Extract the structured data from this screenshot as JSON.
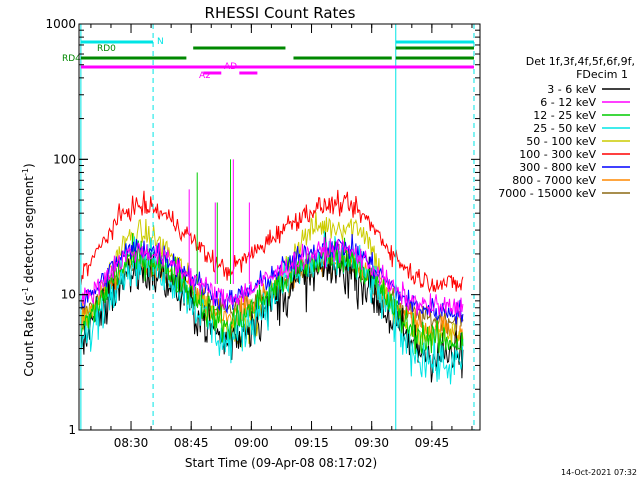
{
  "chart_data": {
    "type": "line",
    "title": "RHESSI Count Rates",
    "xlabel": "Start Time (09-Apr-08 08:17:02)",
    "ylabel_main": "Count Rate (s",
    "ylabel_sup1": "-1",
    "ylabel_mid": " detector segment",
    "ylabel_sup2": "-1",
    "ylabel_end": ")",
    "yscale": "log",
    "ylim": [
      1,
      1000
    ],
    "xlim_minutes": [
      497.03,
      597.0
    ],
    "x_ticks": [
      {
        "m": 510,
        "label": "08:30"
      },
      {
        "m": 525,
        "label": "08:45"
      },
      {
        "m": 540,
        "label": "09:00"
      },
      {
        "m": 555,
        "label": "09:15"
      },
      {
        "m": 570,
        "label": "09:30"
      },
      {
        "m": 585,
        "label": "09:45"
      }
    ],
    "y_ticks": [
      {
        "v": 1,
        "label": "1"
      },
      {
        "v": 10,
        "label": "10"
      },
      {
        "v": 100,
        "label": "100"
      },
      {
        "v": 1000,
        "label": "1000"
      }
    ],
    "legend_title_1": "Det 1f,3f,4f,5f,6f,9f,",
    "legend_title_2": "FDecim 1",
    "series": [
      {
        "name": "3 - 6 keV",
        "color": "#000000",
        "base": 3.5,
        "peak": 15,
        "noise": 0.22
      },
      {
        "name": "6 - 12 keV",
        "color": "#ff00ff",
        "base": 8,
        "peak": 21,
        "noise": 0.1
      },
      {
        "name": "12 - 25 keV",
        "color": "#00cc00",
        "base": 4.5,
        "peak": 19,
        "noise": 0.15
      },
      {
        "name": "25 - 50 keV",
        "color": "#00e5e5",
        "base": 3.0,
        "peak": 18,
        "noise": 0.2
      },
      {
        "name": "50 - 100 keV",
        "color": "#cccc00",
        "base": 5.0,
        "peak": 32,
        "noise": 0.12
      },
      {
        "name": "100 - 300 keV",
        "color": "#ff0000",
        "base": 12,
        "peak": 45,
        "noise": 0.09
      },
      {
        "name": "300 - 800 keV",
        "color": "#0000ff",
        "base": 7.5,
        "peak": 22,
        "noise": 0.1
      },
      {
        "name": "800 - 7000 keV",
        "color": "#ff8800",
        "base": 5.5,
        "peak": 17,
        "noise": 0.13
      },
      {
        "name": "7000 - 15000 keV",
        "color": "#8b6914",
        "base": 6.5,
        "peak": 16,
        "noise": 0.1
      }
    ],
    "spikes": [
      {
        "m": 526.5,
        "v": 80,
        "color": "#00cc00"
      },
      {
        "m": 531.5,
        "v": 48,
        "color": "#00cc00"
      },
      {
        "m": 534.8,
        "v": 100,
        "color": "#00cc00"
      },
      {
        "m": 531.0,
        "v": 48,
        "color": "#ff00ff"
      },
      {
        "m": 535.5,
        "v": 100,
        "color": "#ff00ff"
      },
      {
        "m": 539.5,
        "v": 48,
        "color": "#ff00ff"
      },
      {
        "m": 524.5,
        "v": 60,
        "color": "#ff00ff"
      }
    ],
    "vlines": [
      {
        "m": 497.5,
        "style": "solid"
      },
      {
        "m": 515.5,
        "style": "dashed"
      },
      {
        "m": 576.0,
        "style": "solid"
      },
      {
        "m": 595.5,
        "style": "dashed"
      }
    ],
    "flag_bars": [
      {
        "label": "N",
        "color": "#00e5e5",
        "segments": [
          [
            497.5,
            515.5
          ],
          [
            576.0,
            595.5
          ]
        ]
      },
      {
        "label": "RD0",
        "color": "#008800",
        "segments": [
          [
            525.5,
            548.5
          ],
          [
            576.0,
            595.5
          ]
        ]
      },
      {
        "label": "RD4",
        "color": "#008800",
        "segments": [
          [
            497.5,
            523.8
          ],
          [
            550.5,
            575.0
          ],
          [
            576.0,
            595.5
          ]
        ]
      },
      {
        "label": "AD",
        "color": "#ff00ff",
        "segments": [
          [
            497.5,
            595.5
          ]
        ]
      },
      {
        "label": "A2",
        "color": "#ff00ff",
        "segments": [
          [
            528.0,
            532.5
          ],
          [
            537.0,
            541.5
          ]
        ]
      }
    ],
    "timestamp": "14-Oct-2021 07:32"
  }
}
